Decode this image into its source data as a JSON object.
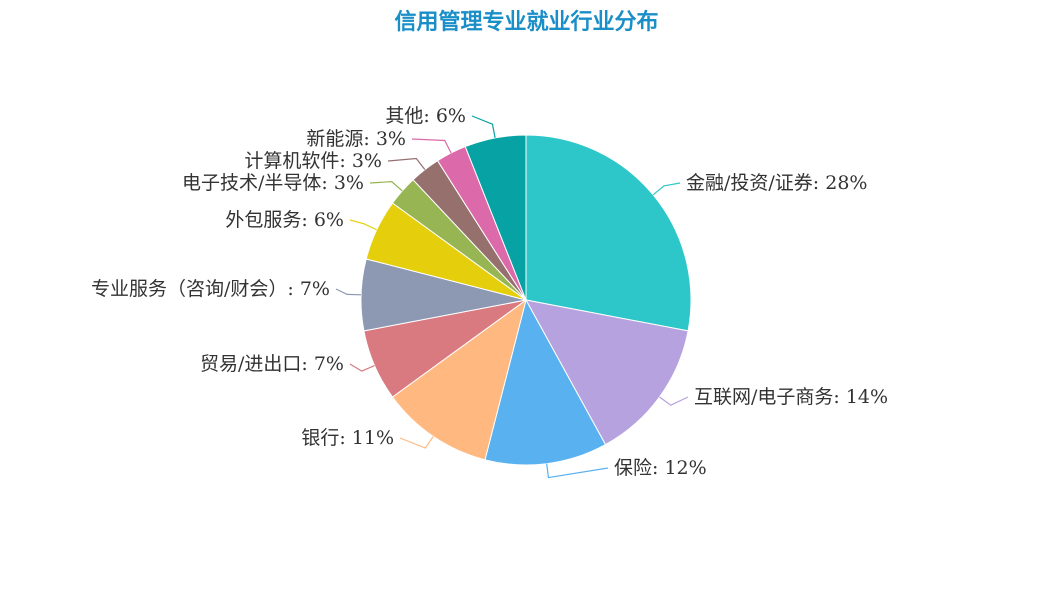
{
  "chart_data": {
    "type": "pie",
    "title": "信用管理专业就业行业分布",
    "slices": [
      {
        "label": "金融/投资/证券",
        "value": 28,
        "display": "金融/投资/证券: 28%",
        "color": "#2ec7c9"
      },
      {
        "label": "互联网/电子商务",
        "value": 14,
        "display": "互联网/电子商务: 14%",
        "color": "#b6a2de"
      },
      {
        "label": "保险",
        "value": 12,
        "display": "保险: 12%",
        "color": "#5ab1ef"
      },
      {
        "label": "银行",
        "value": 11,
        "display": "银行: 11%",
        "color": "#ffb980"
      },
      {
        "label": "贸易/进出口",
        "value": 7,
        "display": "贸易/进出口: 7%",
        "color": "#d87a80"
      },
      {
        "label": "专业服务（咨询/财会）",
        "value": 7,
        "display": "专业服务（咨询/财会）: 7%",
        "color": "#8d98b3"
      },
      {
        "label": "外包服务",
        "value": 6,
        "display": "外包服务: 6%",
        "color": "#e5cf0d"
      },
      {
        "label": "电子技术/半导体",
        "value": 3,
        "display": "电子技术/半导体: 3%",
        "color": "#97b552"
      },
      {
        "label": "计算机软件",
        "value": 3,
        "display": "计算机软件: 3%",
        "color": "#95706d"
      },
      {
        "label": "新能源",
        "value": 3,
        "display": "新能源: 3%",
        "color": "#dc69aa"
      },
      {
        "label": "其他",
        "value": 6,
        "display": "其他: 6%",
        "color": "#07a2a4"
      }
    ]
  }
}
